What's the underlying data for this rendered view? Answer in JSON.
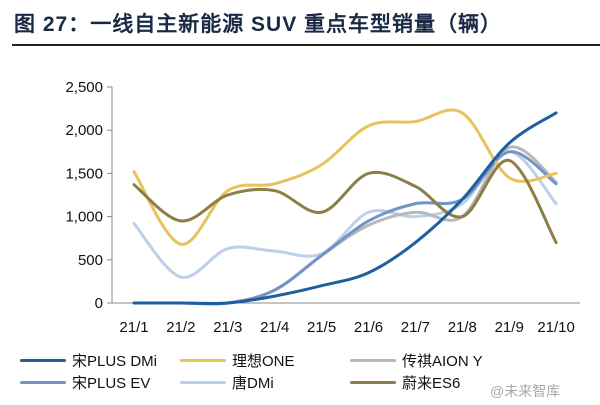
{
  "title": "图 27：一线自主新能源 SUV 重点车型销量（辆）",
  "watermark": "@未来智库",
  "chart_data": {
    "type": "line",
    "title": "图 27：一线自主新能源 SUV 重点车型销量（辆）",
    "xlabel": "",
    "ylabel": "",
    "categories": [
      "21/1",
      "21/2",
      "21/3",
      "21/4",
      "21/5",
      "21/6",
      "21/7",
      "21/8",
      "21/9",
      "21/10"
    ],
    "ylim": [
      0,
      2500
    ],
    "yticks": [
      "0",
      "500",
      "1,000",
      "1,500",
      "2,000",
      "2,500"
    ],
    "ytick_values": [
      0,
      500,
      1000,
      1500,
      2000,
      2500
    ],
    "grid": false,
    "legend": "bottom",
    "series": [
      {
        "name": "宋PLUS DMi",
        "color": "#1f5f9e",
        "values": [
          0,
          0,
          0,
          80,
          200,
          350,
          700,
          1200,
          1850,
          2200
        ]
      },
      {
        "name": "理想ONE",
        "color": "#e8c25a",
        "values": [
          1520,
          680,
          1300,
          1380,
          1600,
          2050,
          2100,
          2200,
          1450,
          1500
        ]
      },
      {
        "name": "传祺AION Y",
        "color": "#b8b8b8",
        "values": [
          0,
          0,
          0,
          150,
          550,
          900,
          1050,
          1000,
          1800,
          1400
        ]
      },
      {
        "name": "宋PLUS EV",
        "color": "#7394c8",
        "values": [
          0,
          0,
          0,
          150,
          550,
          950,
          1150,
          1200,
          1750,
          1380
        ]
      },
      {
        "name": "唐DMi",
        "color": "#bcd0ea",
        "values": [
          920,
          300,
          630,
          600,
          570,
          1050,
          1000,
          1150,
          1750,
          1150
        ]
      },
      {
        "name": "蔚来ES6",
        "color": "#8c7f45",
        "values": [
          1370,
          950,
          1250,
          1300,
          1050,
          1500,
          1350,
          1000,
          1650,
          700
        ]
      }
    ]
  }
}
